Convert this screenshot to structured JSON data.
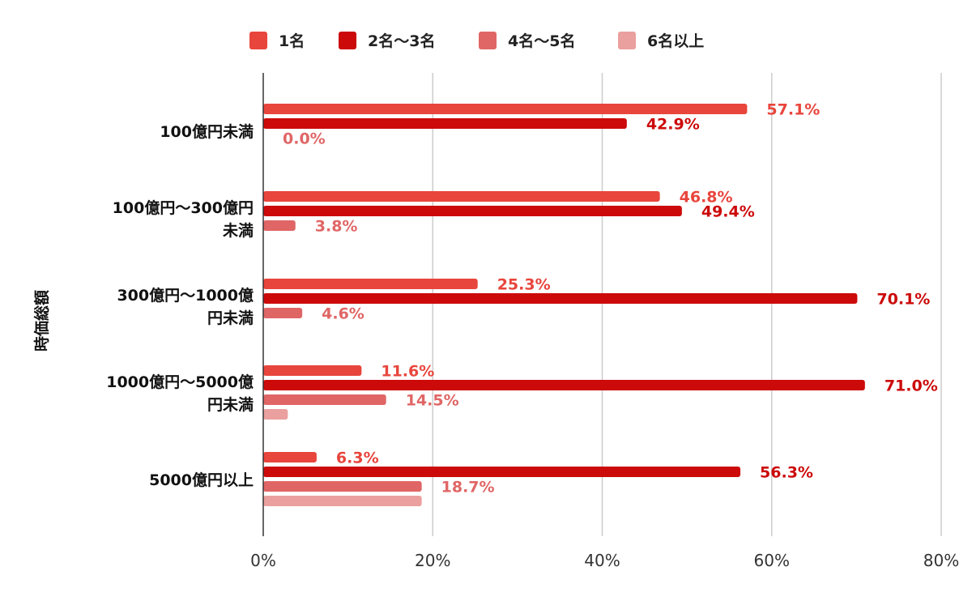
{
  "chart_data": {
    "type": "bar",
    "orientation": "horizontal",
    "categories": [
      [
        "100億円未満"
      ],
      [
        "100億円～300億円",
        "未満"
      ],
      [
        "300億円～1000億",
        "円未満"
      ],
      [
        "1000億円～5000億",
        "円未満"
      ],
      [
        "5000億円以上"
      ]
    ],
    "series": [
      {
        "name": "1名",
        "color": "#e8453c",
        "values": [
          57.1,
          46.8,
          25.3,
          11.6,
          6.3
        ],
        "labels": [
          "57.1%",
          "46.8%",
          "25.3%",
          "11.6%",
          "6.3%"
        ]
      },
      {
        "name": "2名～3名",
        "color": "#cc0a0a",
        "values": [
          42.9,
          49.4,
          70.1,
          71.0,
          56.3
        ],
        "labels": [
          "42.9%",
          "49.4%",
          "70.1%",
          "71.0%",
          "56.3%"
        ]
      },
      {
        "name": "4名～5名",
        "color": "#e06666",
        "values": [
          0.0,
          3.8,
          4.6,
          14.5,
          18.7
        ],
        "labels": [
          "0.0%",
          "3.8%",
          "4.6%",
          "14.5%",
          "18.7%"
        ]
      },
      {
        "name": "6名以上",
        "color": "#eaa09e",
        "values": [
          0.0,
          0.0,
          0.0,
          2.9,
          18.7
        ],
        "labels": []
      }
    ],
    "ylabel": "時価総額",
    "xlabel": "",
    "xlim": [
      0,
      80
    ],
    "xticks": [
      0,
      20,
      40,
      60,
      80
    ],
    "tick_labels": [
      "0%",
      "20%",
      "40%",
      "60%",
      "80%"
    ],
    "grid": true,
    "legend_position": "top"
  }
}
